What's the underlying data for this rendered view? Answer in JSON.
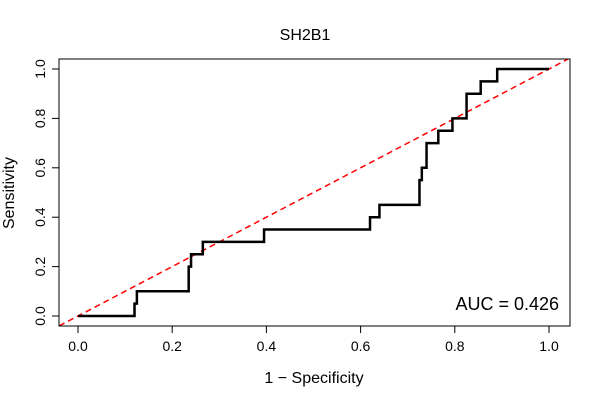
{
  "chart_data": {
    "type": "line",
    "title": "SH2B1",
    "xlabel": "1 − Specificity",
    "ylabel": "Sensitivity",
    "xlim": [
      0,
      1
    ],
    "ylim": [
      0,
      1
    ],
    "x_ticks": [
      "0.0",
      "0.2",
      "0.4",
      "0.6",
      "0.8",
      "1.0"
    ],
    "y_ticks": [
      "0.0",
      "0.2",
      "0.4",
      "0.6",
      "0.8",
      "1.0"
    ],
    "grid": false,
    "annotation": "AUC = 0.426",
    "series": [
      {
        "role": "roc-curve",
        "color": "#000000",
        "style": "solid",
        "x": [
          0.0,
          0.12,
          0.12,
          0.125,
          0.125,
          0.235,
          0.235,
          0.24,
          0.24,
          0.265,
          0.265,
          0.395,
          0.395,
          0.62,
          0.62,
          0.64,
          0.64,
          0.725,
          0.725,
          0.73,
          0.73,
          0.74,
          0.74,
          0.765,
          0.765,
          0.795,
          0.795,
          0.825,
          0.825,
          0.855,
          0.855,
          0.89,
          0.89,
          1.0
        ],
        "y": [
          0.0,
          0.0,
          0.05,
          0.05,
          0.1,
          0.1,
          0.2,
          0.2,
          0.25,
          0.25,
          0.3,
          0.3,
          0.35,
          0.35,
          0.4,
          0.4,
          0.45,
          0.45,
          0.55,
          0.55,
          0.6,
          0.6,
          0.7,
          0.7,
          0.75,
          0.75,
          0.8,
          0.8,
          0.9,
          0.9,
          0.95,
          0.95,
          1.0,
          1.0
        ]
      },
      {
        "role": "reference-diagonal",
        "color": "#ff0000",
        "style": "dashed",
        "x": [
          -0.04,
          1.04
        ],
        "y": [
          -0.04,
          1.04
        ]
      }
    ]
  }
}
